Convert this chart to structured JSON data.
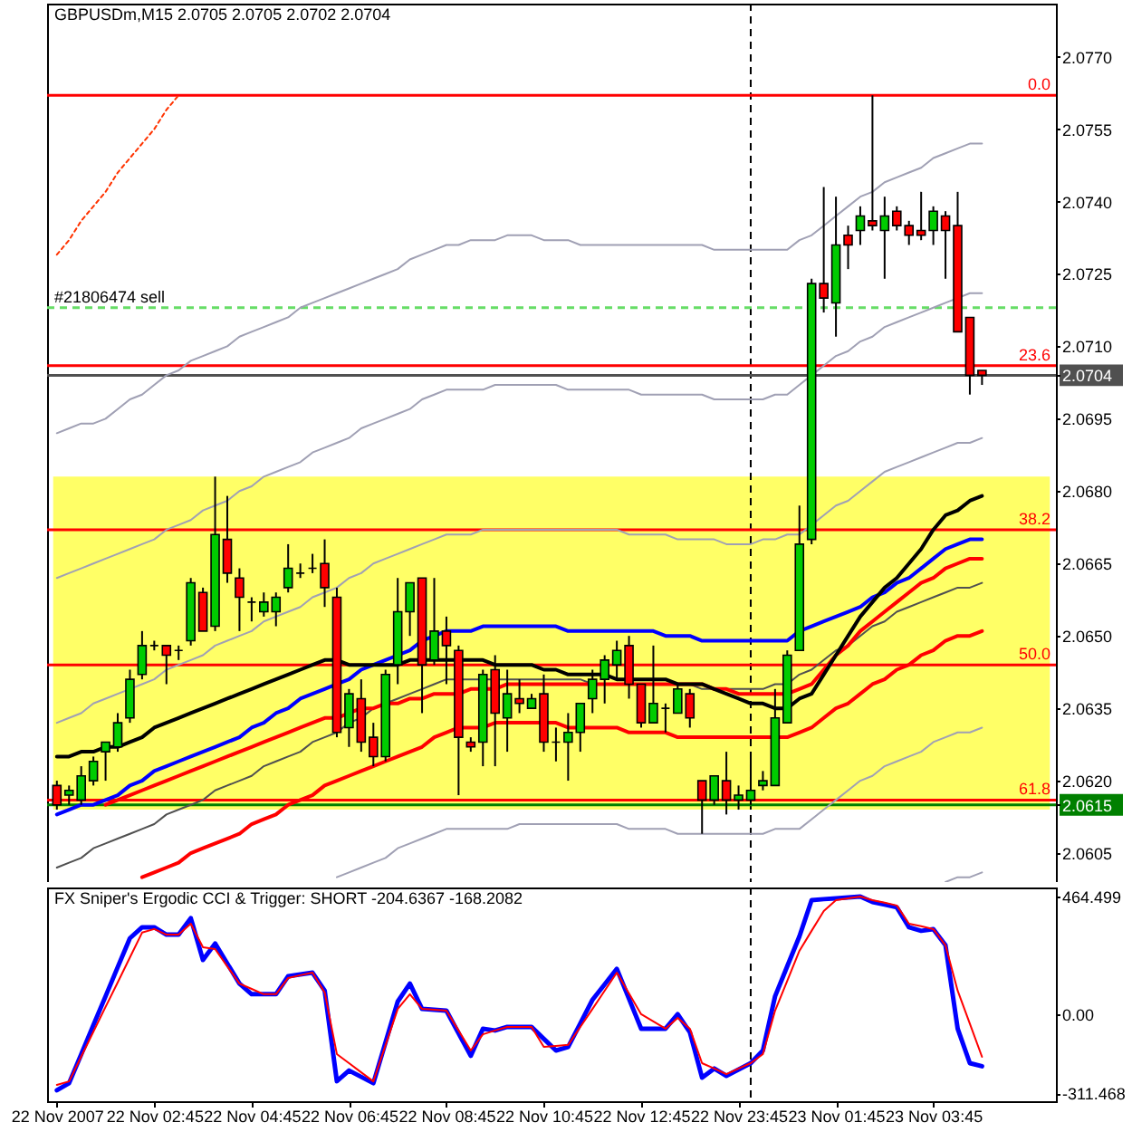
{
  "chart_data": [
    {
      "type": "candlestick",
      "title": "GBPUSDm,M15 2.0705 2.0705 2.0702 2.0704",
      "categories": [
        null,
        null,
        null,
        null,
        null,
        null,
        null,
        null,
        null,
        null,
        null,
        null,
        null,
        null,
        null,
        null,
        null,
        null,
        null,
        null,
        null,
        null,
        null,
        null,
        null,
        null,
        null,
        null,
        null,
        null,
        null,
        null,
        null,
        null,
        null,
        null,
        null,
        null,
        null,
        null,
        null,
        null,
        null,
        null,
        null,
        null,
        null,
        null,
        null,
        null,
        null,
        null,
        null,
        null,
        null,
        null,
        null,
        null,
        null,
        null,
        null,
        null,
        null,
        null,
        null,
        null,
        null,
        null,
        null,
        null,
        null,
        null,
        null,
        null,
        null,
        null,
        null
      ],
      "ohlc": [
        [
          2.0619,
          2.062,
          2.0614,
          2.0615
        ],
        [
          2.0617,
          2.0619,
          2.0615,
          2.0618
        ],
        [
          2.0616,
          2.0623,
          2.0615,
          2.0621
        ],
        [
          2.062,
          2.0625,
          2.0619,
          2.0624
        ],
        [
          2.0626,
          2.0628,
          2.062,
          2.0628
        ],
        [
          2.0627,
          2.0634,
          2.0626,
          2.0632
        ],
        [
          2.0633,
          2.0643,
          2.0632,
          2.0641
        ],
        [
          2.0642,
          2.0651,
          2.0641,
          2.0648
        ],
        [
          2.0648,
          2.0649,
          2.0647,
          2.0648
        ],
        [
          2.0648,
          2.0648,
          2.064,
          2.0646
        ],
        [
          2.0647,
          2.0648,
          2.0645,
          2.0647
        ],
        [
          2.0649,
          2.0662,
          2.0648,
          2.0661
        ],
        [
          2.0659,
          2.066,
          2.0651,
          2.0651
        ],
        [
          2.0652,
          2.0683,
          2.0651,
          2.0671
        ],
        [
          2.067,
          2.0679,
          2.0661,
          2.0663
        ],
        [
          2.0662,
          2.0664,
          2.0651,
          2.0658
        ],
        [
          2.0657,
          2.0658,
          2.0653,
          2.0657
        ],
        [
          2.0655,
          2.0659,
          2.0654,
          2.0657
        ],
        [
          2.0655,
          2.0659,
          2.0652,
          2.0658
        ],
        [
          2.066,
          2.0669,
          2.0659,
          2.0664
        ],
        [
          2.0663,
          2.0665,
          2.0662,
          2.0663
        ],
        [
          2.0664,
          2.0667,
          2.0663,
          2.0664
        ],
        [
          2.0665,
          2.067,
          2.0656,
          2.066
        ],
        [
          2.0658,
          2.066,
          2.0629,
          2.063
        ],
        [
          2.0631,
          2.0639,
          2.0627,
          2.0638
        ],
        [
          2.0637,
          2.0641,
          2.0626,
          2.0628
        ],
        [
          2.0629,
          2.0632,
          2.0623,
          2.0625
        ],
        [
          2.0625,
          2.0643,
          2.0624,
          2.0642
        ],
        [
          2.0644,
          2.0662,
          2.064,
          2.0655
        ],
        [
          2.0655,
          2.0661,
          2.065,
          2.0661
        ],
        [
          2.0662,
          2.0662,
          2.0634,
          2.0644
        ],
        [
          2.0645,
          2.0662,
          2.0644,
          2.0651
        ],
        [
          2.0651,
          2.0654,
          2.064,
          2.0648
        ],
        [
          2.0647,
          2.0648,
          2.0617,
          2.0629
        ],
        [
          2.0628,
          2.0629,
          2.0626,
          2.0627
        ],
        [
          2.0628,
          2.0643,
          2.0623,
          2.0642
        ],
        [
          2.0643,
          2.0646,
          2.0623,
          2.0634
        ],
        [
          2.0633,
          2.0643,
          2.0626,
          2.0638
        ],
        [
          2.0637,
          2.0641,
          2.0634,
          2.0636
        ],
        [
          2.0635,
          2.0638,
          2.0635,
          2.0637
        ],
        [
          2.0638,
          2.0642,
          2.0626,
          2.0628
        ],
        [
          2.0628,
          2.0631,
          2.0624,
          2.0628
        ],
        [
          2.0628,
          2.0634,
          2.062,
          2.063
        ],
        [
          2.063,
          2.0636,
          2.0626,
          2.0636
        ],
        [
          2.0637,
          2.0643,
          2.0634,
          2.0641
        ],
        [
          2.0641,
          2.0646,
          2.0636,
          2.0645
        ],
        [
          2.0644,
          2.0649,
          2.0641,
          2.0647
        ],
        [
          2.0648,
          2.065,
          2.0637,
          2.064
        ],
        [
          2.064,
          2.064,
          2.0631,
          2.0632
        ],
        [
          2.0632,
          2.0648,
          2.0632,
          2.0636
        ],
        [
          2.0635,
          2.0636,
          2.063,
          2.0635
        ],
        [
          2.0634,
          2.064,
          2.0634,
          2.0639
        ],
        [
          2.0638,
          2.0639,
          2.0631,
          2.0633
        ],
        [
          2.062,
          2.062,
          2.0609,
          2.0616
        ],
        [
          2.0616,
          2.0621,
          2.0615,
          2.0621
        ],
        [
          2.062,
          2.0626,
          2.0613,
          2.0616
        ],
        [
          2.0616,
          2.0619,
          2.0614,
          2.0617
        ],
        [
          2.0616,
          2.0626,
          2.0615,
          2.0618
        ],
        [
          2.0619,
          2.0622,
          2.0618,
          2.062
        ],
        [
          2.0619,
          2.0639,
          2.0619,
          2.0633
        ],
        [
          2.0632,
          2.0647,
          2.0632,
          2.0646
        ],
        [
          2.0647,
          2.0677,
          2.0647,
          2.0669
        ],
        [
          2.067,
          2.0724,
          2.0669,
          2.0723
        ],
        [
          2.0723,
          2.0743,
          2.0717,
          2.072
        ],
        [
          2.0719,
          2.0741,
          2.0712,
          2.0731
        ],
        [
          2.0733,
          2.0735,
          2.0726,
          2.0731
        ],
        [
          2.0734,
          2.0739,
          2.0731,
          2.0737
        ],
        [
          2.0736,
          2.0762,
          2.0734,
          2.0735
        ],
        [
          2.0734,
          2.0741,
          2.0724,
          2.0737
        ],
        [
          2.0738,
          2.0739,
          2.0734,
          2.0735
        ],
        [
          2.0735,
          2.0736,
          2.0731,
          2.0733
        ],
        [
          2.0734,
          2.0742,
          2.0732,
          2.0733
        ],
        [
          2.0734,
          2.0739,
          2.0731,
          2.0738
        ],
        [
          2.0737,
          2.0738,
          2.0724,
          2.0734
        ],
        [
          2.0735,
          2.0742,
          2.0713,
          2.0713
        ],
        [
          2.0716,
          2.0716,
          2.07,
          2.0704
        ],
        [
          2.0705,
          2.0705,
          2.0702,
          2.0704
        ]
      ],
      "colors": [
        "#ff0000",
        "#00cc00",
        "#00cc00",
        "#00cc00",
        "#00cc00",
        "#00cc00",
        "#00cc00",
        "#00cc00",
        "#000000",
        "#ff0000",
        "#000000",
        "#00cc00",
        "#ff0000",
        "#00cc00",
        "#ff0000",
        "#ff0000",
        "#000000",
        "#00cc00",
        "#00cc00",
        "#00cc00",
        "#000000",
        "#000000",
        "#ff0000",
        "#ff0000",
        "#00cc00",
        "#ff0000",
        "#ff0000",
        "#00cc00",
        "#00cc00",
        "#00cc00",
        "#ff0000",
        "#00cc00",
        "#ff0000",
        "#ff0000",
        "#ff0000",
        "#00cc00",
        "#ff0000",
        "#00cc00",
        "#ff0000",
        "#00cc00",
        "#ff0000",
        "#000000",
        "#00cc00",
        "#00cc00",
        "#00cc00",
        "#00cc00",
        "#00cc00",
        "#ff0000",
        "#ff0000",
        "#00cc00",
        "#000000",
        "#00cc00",
        "#ff0000",
        "#ff0000",
        "#00cc00",
        "#ff0000",
        "#00cc00",
        "#00cc00",
        "#00cc00",
        "#00cc00",
        "#00cc00",
        "#00cc00",
        "#00cc00",
        "#ff0000",
        "#00cc00",
        "#ff0000",
        "#00cc00",
        "#ff0000",
        "#00cc00",
        "#ff0000",
        "#ff0000",
        "#ff0000",
        "#00cc00",
        "#ff0000",
        "#ff0000",
        "#ff0000",
        "#ff0000"
      ],
      "series": [
        {
          "type": "line",
          "color": "#a0a0b4",
          "values": [
            2.0692,
            2.0693,
            2.0694,
            2.0694,
            2.0695,
            2.0697,
            2.0699,
            2.07,
            2.0702,
            2.0704,
            2.0705,
            2.0707,
            2.0708,
            2.0709,
            2.071,
            2.0712,
            2.0713,
            2.0714,
            2.0715,
            2.0716,
            2.0718,
            2.0719,
            2.072,
            2.0721,
            2.0722,
            2.0723,
            2.0724,
            2.0725,
            2.0726,
            2.0728,
            2.0729,
            2.073,
            2.0731,
            2.0731,
            2.0732,
            2.0732,
            2.0732,
            2.0733,
            2.0733,
            2.0733,
            2.0732,
            2.0732,
            2.0732,
            2.0731,
            2.0731,
            2.0731,
            2.0731,
            2.0731,
            2.0731,
            2.0731,
            2.0731,
            2.0731,
            2.0731,
            2.0731,
            2.073,
            2.073,
            2.073,
            2.073,
            2.073,
            2.073,
            2.073,
            2.0732,
            2.0733,
            2.0735,
            2.0737,
            2.0739,
            2.0741,
            2.0742,
            2.0744,
            2.0745,
            2.0746,
            2.0747,
            2.0749,
            2.075,
            2.0751,
            2.0752,
            2.0752
          ]
        },
        {
          "type": "line",
          "color": "#a0a0b4",
          "values": [
            2.0662,
            2.0663,
            2.0664,
            2.0665,
            2.0666,
            2.0667,
            2.0668,
            2.0669,
            2.067,
            2.0672,
            2.0673,
            2.0674,
            2.0676,
            2.0677,
            2.0678,
            2.068,
            2.0681,
            2.0683,
            2.0684,
            2.0685,
            2.0686,
            2.0688,
            2.0689,
            2.069,
            2.0691,
            2.0693,
            2.0694,
            2.0695,
            2.0696,
            2.0697,
            2.0699,
            2.07,
            2.0701,
            2.0701,
            2.0701,
            2.0701,
            2.0702,
            2.0702,
            2.0702,
            2.0702,
            2.0702,
            2.0702,
            2.0701,
            2.0701,
            2.0701,
            2.0701,
            2.0701,
            2.0701,
            2.07,
            2.07,
            2.07,
            2.07,
            2.07,
            2.07,
            2.0699,
            2.0699,
            2.0699,
            2.0699,
            2.0699,
            2.07,
            2.07,
            2.0702,
            2.0704,
            2.0706,
            2.0708,
            2.0709,
            2.0711,
            2.0712,
            2.0714,
            2.0715,
            2.0716,
            2.0717,
            2.0718,
            2.0719,
            2.072,
            2.0721,
            2.0721
          ]
        },
        {
          "type": "line",
          "color": "#a0a0b4",
          "values": [
            2.0632,
            2.0633,
            2.0634,
            2.0636,
            2.0637,
            2.0638,
            2.0639,
            2.064,
            2.0641,
            2.0643,
            2.0644,
            2.0645,
            2.0646,
            2.0648,
            2.0649,
            2.065,
            2.0651,
            2.0653,
            2.0654,
            2.0655,
            2.0656,
            2.0658,
            2.0659,
            2.066,
            2.0662,
            2.0663,
            2.0665,
            2.0666,
            2.0667,
            2.0668,
            2.0669,
            2.067,
            2.0671,
            2.0671,
            2.0671,
            2.0672,
            2.0672,
            2.0672,
            2.0672,
            2.0672,
            2.0672,
            2.0672,
            2.0672,
            2.0672,
            2.0672,
            2.0672,
            2.0672,
            2.0671,
            2.0671,
            2.0671,
            2.0671,
            2.067,
            2.067,
            2.067,
            2.067,
            2.0669,
            2.0669,
            2.0669,
            2.067,
            2.067,
            2.0671,
            2.0671,
            2.0673,
            2.0675,
            2.0677,
            2.0678,
            2.068,
            2.0682,
            2.0684,
            2.0685,
            2.0686,
            2.0687,
            2.0688,
            2.0689,
            2.069,
            2.069,
            2.0691
          ]
        },
        {
          "type": "line",
          "color": "#505050",
          "values": [
            2.0602,
            2.0603,
            2.0604,
            2.0606,
            2.0607,
            2.0608,
            2.0609,
            2.061,
            2.0611,
            2.0613,
            2.0614,
            2.0615,
            2.0616,
            2.0618,
            2.0619,
            2.062,
            2.0621,
            2.0623,
            2.0624,
            2.0625,
            2.0626,
            2.0628,
            2.0629,
            2.063,
            2.0632,
            2.0633,
            2.0635,
            2.0636,
            2.0637,
            2.0638,
            2.0639,
            2.064,
            2.0641,
            2.0641,
            2.0641,
            2.0641,
            2.0641,
            2.0641,
            2.0641,
            2.0641,
            2.0641,
            2.0641,
            2.0641,
            2.0641,
            2.064,
            2.064,
            2.064,
            2.064,
            2.064,
            2.064,
            2.064,
            2.064,
            2.064,
            2.0639,
            2.0639,
            2.0639,
            2.0639,
            2.0639,
            2.0639,
            2.064,
            2.064,
            2.0642,
            2.0643,
            2.0645,
            2.0647,
            2.0648,
            2.065,
            2.0652,
            2.0653,
            2.0655,
            2.0656,
            2.0657,
            2.0658,
            2.0659,
            2.066,
            2.066,
            2.0661
          ]
        },
        {
          "type": "line",
          "color": "#a0a0b4",
          "values": [
            null,
            null,
            null,
            null,
            null,
            null,
            null,
            null,
            null,
            null,
            null,
            null,
            null,
            null,
            null,
            null,
            null,
            null,
            null,
            null,
            null,
            null,
            null,
            2.06,
            2.0601,
            2.0602,
            2.0603,
            2.0604,
            2.0606,
            2.0607,
            2.0608,
            2.0609,
            2.061,
            2.061,
            2.061,
            2.061,
            2.061,
            2.061,
            2.0611,
            2.0611,
            2.0611,
            2.0611,
            2.0611,
            2.0611,
            2.0611,
            2.0611,
            2.0611,
            2.061,
            2.061,
            2.061,
            2.061,
            2.0609,
            2.0609,
            2.0609,
            2.0609,
            2.0609,
            2.0609,
            2.0609,
            2.0609,
            2.061,
            2.061,
            2.061,
            2.0612,
            2.0614,
            2.0616,
            2.0618,
            2.062,
            2.0621,
            2.0623,
            2.0624,
            2.0625,
            2.0626,
            2.0628,
            2.0629,
            2.063,
            2.063,
            2.0631
          ]
        },
        {
          "type": "line",
          "color": "#a0a0b4",
          "values": [
            null,
            null,
            null,
            null,
            null,
            null,
            null,
            null,
            null,
            null,
            null,
            null,
            null,
            null,
            null,
            null,
            null,
            null,
            null,
            null,
            null,
            null,
            null,
            null,
            null,
            null,
            null,
            null,
            null,
            null,
            null,
            null,
            null,
            null,
            null,
            null,
            null,
            null,
            null,
            null,
            null,
            null,
            null,
            null,
            null,
            null,
            null,
            null,
            null,
            null,
            null,
            null,
            null,
            null,
            null,
            null,
            null,
            null,
            null,
            null,
            null,
            null,
            null,
            null,
            null,
            null,
            null,
            null,
            null,
            null,
            null,
            null,
            null,
            2.0599,
            2.06,
            2.06,
            2.0601
          ]
        },
        {
          "type": "line",
          "color": "#ff0000",
          "values": [
            null,
            null,
            null,
            null,
            null,
            null,
            null,
            2.06,
            2.0601,
            2.0602,
            2.0603,
            2.0605,
            2.0606,
            2.0607,
            2.0608,
            2.0609,
            2.0611,
            2.0612,
            2.0613,
            2.0615,
            2.0616,
            2.0617,
            2.0619,
            2.062,
            2.0621,
            2.0622,
            2.0623,
            2.0624,
            2.0625,
            2.0626,
            2.0627,
            2.0629,
            2.063,
            2.0631,
            2.0631,
            2.0631,
            2.0632,
            2.0632,
            2.0632,
            2.0632,
            2.0632,
            2.0632,
            2.0631,
            2.0631,
            2.0631,
            2.0631,
            2.0631,
            2.063,
            2.063,
            2.063,
            2.063,
            2.0629,
            2.0629,
            2.0629,
            2.0629,
            2.0629,
            2.0629,
            2.0629,
            2.0629,
            2.0629,
            2.0629,
            2.063,
            2.0631,
            2.0633,
            2.0635,
            2.0636,
            2.0638,
            2.064,
            2.0641,
            2.0643,
            2.0644,
            2.0646,
            2.0647,
            2.0649,
            2.065,
            2.065,
            2.0651
          ]
        },
        {
          "type": "line",
          "color": "#ff0000",
          "values": [
            null,
            null,
            null,
            null,
            2.0615,
            2.0616,
            2.0617,
            2.0618,
            2.0619,
            2.062,
            2.0621,
            2.0622,
            2.0623,
            2.0624,
            2.0625,
            2.0626,
            2.0627,
            2.0628,
            2.0629,
            2.063,
            2.0631,
            2.0632,
            2.0633,
            2.0633,
            2.0634,
            2.0635,
            2.0635,
            2.0636,
            2.0636,
            2.0637,
            2.0637,
            2.0638,
            2.0638,
            2.0638,
            2.0639,
            2.0639,
            2.0639,
            2.064,
            2.064,
            2.064,
            2.064,
            2.064,
            2.064,
            2.064,
            2.064,
            2.064,
            2.064,
            2.064,
            2.064,
            2.064,
            2.064,
            2.064,
            2.064,
            2.064,
            2.0639,
            2.0639,
            2.0638,
            2.0638,
            2.0638,
            2.0638,
            2.0638,
            2.0639,
            2.064,
            2.0643,
            2.0646,
            2.0648,
            2.0651,
            2.0653,
            2.0655,
            2.0657,
            2.0659,
            2.0661,
            2.0662,
            2.0664,
            2.0665,
            2.0666,
            2.0666
          ]
        },
        {
          "type": "line",
          "color": "#0000ff",
          "values": [
            2.0613,
            2.0614,
            2.0615,
            2.0615,
            2.0616,
            2.0617,
            2.0619,
            2.062,
            2.0622,
            2.0623,
            2.0624,
            2.0625,
            2.0626,
            2.0627,
            2.0628,
            2.0629,
            2.0631,
            2.0632,
            2.0634,
            2.0635,
            2.0637,
            2.0638,
            2.0639,
            2.064,
            2.0641,
            2.0643,
            2.0644,
            2.0645,
            2.0646,
            2.0647,
            2.0649,
            2.065,
            2.0651,
            2.0651,
            2.0651,
            2.0652,
            2.0652,
            2.0652,
            2.0652,
            2.0652,
            2.0652,
            2.0652,
            2.0651,
            2.0651,
            2.0651,
            2.0651,
            2.0651,
            2.0651,
            2.0651,
            2.0651,
            2.065,
            2.065,
            2.065,
            2.0649,
            2.0649,
            2.0649,
            2.0649,
            2.0649,
            2.0649,
            2.0649,
            2.0649,
            2.0651,
            2.0652,
            2.0653,
            2.0654,
            2.0655,
            2.0656,
            2.0658,
            2.0659,
            2.0661,
            2.0662,
            2.0664,
            2.0666,
            2.0668,
            2.0669,
            2.067,
            2.067
          ]
        },
        {
          "type": "line",
          "color": "#000000",
          "values": [
            2.0625,
            2.0625,
            2.0626,
            2.0626,
            2.0627,
            2.0627,
            2.0628,
            2.0629,
            2.0631,
            2.0632,
            2.0633,
            2.0634,
            2.0635,
            2.0636,
            2.0637,
            2.0638,
            2.0639,
            2.064,
            2.0641,
            2.0642,
            2.0643,
            2.0644,
            2.0645,
            2.0645,
            2.0644,
            2.0644,
            2.0644,
            2.0644,
            2.0644,
            2.0645,
            2.0645,
            2.0645,
            2.0645,
            2.0645,
            2.0645,
            2.0645,
            2.0644,
            2.0644,
            2.0644,
            2.0644,
            2.0643,
            2.0643,
            2.0642,
            2.0642,
            2.0642,
            2.0642,
            2.0641,
            2.0641,
            2.0641,
            2.0641,
            2.0641,
            2.064,
            2.064,
            2.064,
            2.0639,
            2.0638,
            2.0637,
            2.0636,
            2.0636,
            2.0635,
            2.0635,
            2.0637,
            2.0638,
            2.0642,
            2.0646,
            2.065,
            2.0654,
            2.0657,
            2.066,
            2.0662,
            2.0665,
            2.0668,
            2.0672,
            2.0675,
            2.0676,
            2.0678,
            2.0679
          ]
        },
        {
          "type": "line",
          "color": "#ff3300",
          "line_style": "dotted",
          "values": [
            2.0729,
            2.0732,
            2.0736,
            2.0739,
            2.0742,
            2.0746,
            2.0749,
            2.0752,
            2.0755,
            2.0759,
            2.0762,
            null,
            null,
            null,
            null,
            null,
            null,
            null,
            null,
            null,
            null,
            null,
            null,
            null,
            null,
            null,
            null,
            null,
            null,
            null,
            null,
            null,
            null,
            null,
            null,
            null,
            null,
            null,
            null,
            null,
            null,
            null,
            null,
            null,
            null,
            null,
            null,
            null,
            null,
            null,
            null,
            null,
            null,
            null,
            null,
            null,
            null,
            null,
            null,
            null,
            null,
            null,
            null,
            null,
            null,
            null,
            null,
            null,
            null,
            null,
            null,
            null,
            null,
            null,
            null,
            null,
            null
          ]
        }
      ],
      "ylim": [
        2.0599,
        2.0781
      ],
      "yticks": [
        {
          "value": 2.077,
          "label": "2.0770"
        },
        2.0755,
        {
          "value": 2.074,
          "label": "2.0740"
        },
        2.0725,
        {
          "value": 2.071,
          "label": "2.0710"
        },
        2.0704,
        2.0695,
        {
          "value": 2.068,
          "label": "2.0680"
        },
        2.0665,
        {
          "value": 2.065,
          "label": "2.0650"
        },
        2.0635,
        {
          "value": 2.062,
          "label": "2.0620"
        },
        2.0615,
        2.0605
      ],
      "ref_lines": [
        {
          "axis": "y",
          "value": 2.0762,
          "color": "#ff0000"
        },
        {
          "axis": "y",
          "value": 2.0706,
          "color": "#ff0000"
        },
        {
          "axis": "y",
          "value": 2.0672,
          "color": "#ff0000"
        },
        {
          "axis": "y",
          "value": 2.0644,
          "color": "#ff0000"
        },
        {
          "axis": "y",
          "value": 2.0616,
          "color": "#ff0000"
        },
        {
          "axis": "y",
          "value": 2.0718,
          "color": "#66dd66",
          "line_style": "dashed"
        },
        {
          "axis": "y",
          "value": 2.0704,
          "color": "#505050"
        },
        {
          "axis": "y",
          "value": 2.0615,
          "color": "#008000"
        }
      ],
      "bands": [
        {
          "axis": "y",
          "from": 2.0614,
          "to": 2.0683,
          "color": "#ffff66"
        }
      ],
      "annotations": [
        {
          "text": "0.0",
          "y": 2.0762
        },
        {
          "text": "23.6",
          "y": 2.0706
        },
        {
          "text": "38.2",
          "y": 2.0672
        },
        {
          "text": "50.0",
          "y": 2.0644
        },
        {
          "text": "61.8",
          "y": 2.0616
        },
        {
          "text": "#21806474 sell",
          "y": 2.0718
        }
      ]
    },
    {
      "type": "line",
      "title": "FX Sniper's Ergodic CCI & Trigger: SHORT -204.6367 -168.2082",
      "categories": [
        "22 Nov 2007",
        null,
        null,
        null,
        null,
        null,
        null,
        null,
        "22 Nov 02:45",
        null,
        null,
        null,
        null,
        null,
        null,
        null,
        "22 Nov 04:45",
        null,
        null,
        null,
        null,
        null,
        null,
        null,
        "22 Nov 06:45",
        null,
        null,
        null,
        null,
        null,
        null,
        null,
        "22 Nov 08:45",
        null,
        null,
        null,
        null,
        null,
        null,
        null,
        "22 Nov 10:45",
        null,
        null,
        null,
        null,
        null,
        null,
        null,
        "22 Nov 12:45",
        null,
        null,
        null,
        null,
        null,
        null,
        null,
        "22 Nov 23:45",
        null,
        null,
        null,
        null,
        null,
        null,
        null,
        "23 Nov 01:45",
        null,
        null,
        null,
        null,
        null,
        null,
        null,
        "23 Nov 03:45",
        null,
        null,
        null,
        null
      ],
      "series": [
        {
          "color": "#0000ff",
          "values": [
            -300,
            -272,
            -158,
            -43,
            71,
            186,
            300,
            343,
            343,
            314,
            314,
            379,
            214,
            279,
            200,
            121,
            79,
            79,
            79,
            150,
            157,
            164,
            93,
            -264,
            -222,
            -247,
            -272,
            -111,
            50,
            121,
            21,
            18,
            14,
            -75,
            -164,
            -57,
            -64,
            -50,
            -50,
            -50,
            -97,
            -143,
            -129,
            -36,
            57,
            118,
            179,
            61,
            -57,
            -57,
            -57,
            0,
            -71,
            -250,
            -214,
            -243,
            -218,
            -193,
            -143,
            71,
            189,
            307,
            450,
            454,
            457,
            461,
            464,
            443,
            433,
            422,
            343,
            329,
            336,
            272,
            -57,
            -193,
            -205
          ]
        },
        {
          "color": "#ff0000",
          "values": [
            -279,
            -265,
            -167,
            -69,
            29,
            126,
            224,
            322,
            336,
            314,
            314,
            357,
            264,
            257,
            189,
            121,
            100,
            79,
            79,
            143,
            154,
            164,
            86,
            -157,
            -193,
            -229,
            -265,
            -122,
            21,
            79,
            21,
            18,
            14,
            -64,
            -143,
            -79,
            -64,
            -50,
            -50,
            -50,
            -129,
            -125,
            -121,
            -50,
            21,
            93,
            164,
            82,
            0,
            -28,
            -57,
            -14,
            -57,
            -193,
            -214,
            -236,
            -214,
            -193,
            -157,
            14,
            132,
            250,
            329,
            407,
            450,
            457,
            464,
            450,
            440,
            429,
            357,
            347,
            336,
            272,
            93,
            -37,
            -168
          ]
        }
      ],
      "ylim": [
        -343,
        500
      ],
      "yticks": [
        -311.468,
        {
          "value": 0,
          "label": "0.00"
        },
        464.499
      ]
    }
  ]
}
